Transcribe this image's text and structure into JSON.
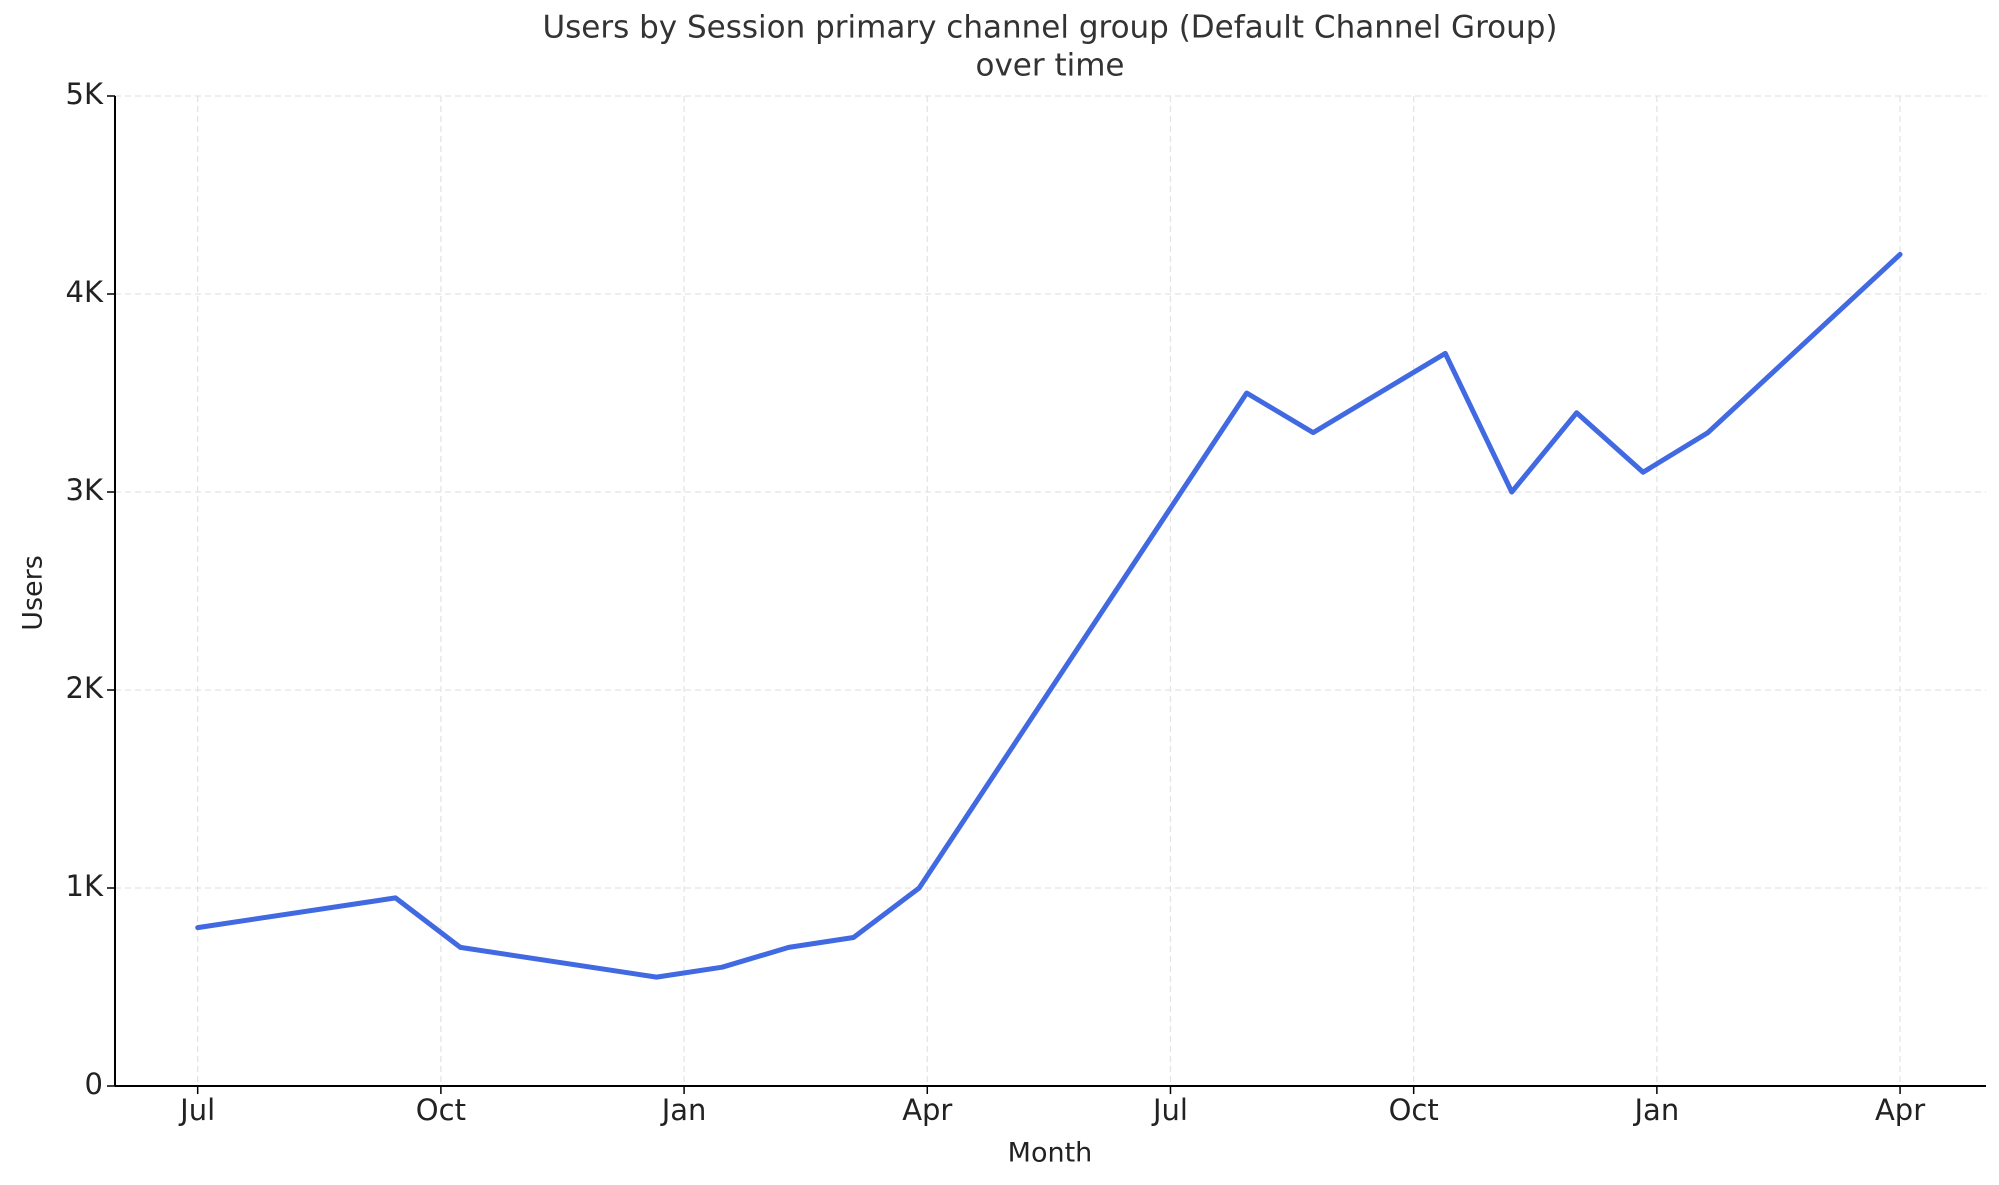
{
  "chart_data": {
    "type": "line",
    "title": [
      "Users by Session primary channel group (Default Channel Group)",
      "over time"
    ],
    "x_label": "Month",
    "y_label": "Users",
    "x": [
      0,
      2.44,
      3.24,
      5.66,
      6.47,
      7.29,
      8.09,
      8.9,
      12.94,
      13.76,
      15.39,
      16.21,
      17.01,
      17.83,
      18.63,
      21.0
    ],
    "series": [
      {
        "name": "Users",
        "color": "#4169e1",
        "values": [
          800,
          950,
          700,
          550,
          600,
          700,
          750,
          1000,
          3500,
          3300,
          3700,
          3000,
          3400,
          3100,
          3300,
          4200
        ]
      }
    ],
    "xlim": [
      -1.02,
      22.06
    ],
    "xticks": [
      {
        "value": 0,
        "label": "Jul"
      },
      {
        "value": 3,
        "label": "Oct"
      },
      {
        "value": 6,
        "label": "Jan"
      },
      {
        "value": 9,
        "label": "Apr"
      },
      {
        "value": 12,
        "label": "Jul"
      },
      {
        "value": 15,
        "label": "Oct"
      },
      {
        "value": 18,
        "label": "Jan"
      },
      {
        "value": 21,
        "label": "Apr"
      }
    ],
    "ylim": [
      0,
      5000
    ],
    "yticks": [
      0,
      {
        "value": 1000,
        "label": "1K"
      },
      {
        "value": 2000,
        "label": "2K"
      },
      {
        "value": 3000,
        "label": "3K"
      },
      {
        "value": 4000,
        "label": "4K"
      },
      {
        "value": 5000,
        "label": "5K"
      }
    ],
    "grid": true
  }
}
